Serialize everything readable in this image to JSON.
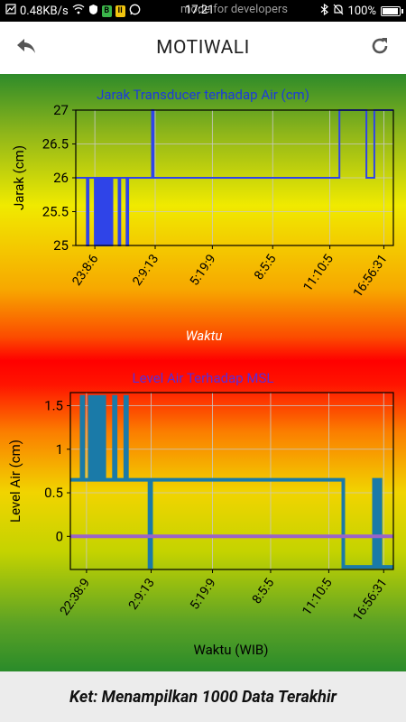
{
  "status_bar": {
    "speed": "0.48KB/s",
    "overlay_text": "mode for developers",
    "time": "17:21",
    "battery": "100%",
    "battery_level": 1.0
  },
  "app_bar": {
    "title": "MOTIWALI",
    "back_icon": "back-arrow-icon",
    "refresh_icon": "refresh-icon"
  },
  "chart_data": [
    {
      "type": "line",
      "title": "Jarak Transducer terhadap Air (cm)",
      "xlabel": "Waktu",
      "ylabel": "Jarak (cm)",
      "ylim": [
        25,
        27
      ],
      "yticks": [
        "25",
        "25.5",
        "26",
        "26.5",
        "27"
      ],
      "xticks": [
        "23:8:6",
        "2:9:13",
        "5:19:9",
        "8:5:5",
        "11:10:5",
        "16:56:31"
      ],
      "grid": true,
      "color": "#2f44e8",
      "title_color": "#1c3bdc",
      "series": [
        {
          "points": [
            [
              0,
              26
            ],
            [
              0.035,
              26
            ],
            [
              0.035,
              25
            ],
            [
              0.04,
              25
            ],
            [
              0.04,
              26
            ],
            [
              0.06,
              26
            ],
            [
              0.06,
              25
            ],
            [
              0.065,
              25
            ],
            [
              0.065,
              26
            ],
            [
              0.07,
              26
            ],
            [
              0.07,
              25
            ],
            [
              0.075,
              25
            ],
            [
              0.075,
              26
            ],
            [
              0.08,
              26
            ],
            [
              0.08,
              25
            ],
            [
              0.085,
              25
            ],
            [
              0.085,
              26
            ],
            [
              0.09,
              26
            ],
            [
              0.09,
              25
            ],
            [
              0.095,
              25
            ],
            [
              0.095,
              26
            ],
            [
              0.1,
              26
            ],
            [
              0.1,
              25
            ],
            [
              0.105,
              25
            ],
            [
              0.105,
              26
            ],
            [
              0.11,
              26
            ],
            [
              0.11,
              25
            ],
            [
              0.115,
              25
            ],
            [
              0.115,
              26
            ],
            [
              0.135,
              26
            ],
            [
              0.135,
              25
            ],
            [
              0.14,
              25
            ],
            [
              0.14,
              26
            ],
            [
              0.16,
              26
            ],
            [
              0.16,
              25
            ],
            [
              0.165,
              25
            ],
            [
              0.165,
              26
            ],
            [
              0.24,
              26
            ],
            [
              0.24,
              27
            ],
            [
              0.245,
              27
            ],
            [
              0.245,
              26
            ],
            [
              0.83,
              26
            ],
            [
              0.83,
              27
            ],
            [
              0.915,
              27
            ],
            [
              0.915,
              26
            ],
            [
              0.94,
              26
            ],
            [
              0.94,
              27
            ],
            [
              1,
              27
            ]
          ]
        }
      ]
    },
    {
      "type": "line",
      "title": "Level Air Terhadap MSL",
      "xlabel": "Waktu (WIB)",
      "ylabel": "Level Air (cm)",
      "ylim": [
        -0.38,
        1.65
      ],
      "yticks": [
        "0",
        "0.5",
        "1",
        "1.5"
      ],
      "xticks": [
        "22:38:9",
        "2:9:13",
        "5:19:9",
        "8:5:5",
        "11:10:5",
        "16:56:31"
      ],
      "grid": true,
      "title_color": "#5a2bd8",
      "series": [
        {
          "name": "",
          "color": "#1a7aa8",
          "points": [
            [
              0,
              0.65
            ],
            [
              0.035,
              0.65
            ],
            [
              0.035,
              1.6
            ],
            [
              0.04,
              1.6
            ],
            [
              0.04,
              0.65
            ],
            [
              0.06,
              0.65
            ],
            [
              0.06,
              1.6
            ],
            [
              0.065,
              1.6
            ],
            [
              0.065,
              0.65
            ],
            [
              0.07,
              0.65
            ],
            [
              0.07,
              1.6
            ],
            [
              0.075,
              1.6
            ],
            [
              0.075,
              0.65
            ],
            [
              0.08,
              0.65
            ],
            [
              0.08,
              1.6
            ],
            [
              0.085,
              1.6
            ],
            [
              0.085,
              0.65
            ],
            [
              0.09,
              0.65
            ],
            [
              0.09,
              1.6
            ],
            [
              0.095,
              1.6
            ],
            [
              0.095,
              0.65
            ],
            [
              0.1,
              0.65
            ],
            [
              0.1,
              1.6
            ],
            [
              0.105,
              1.6
            ],
            [
              0.105,
              0.65
            ],
            [
              0.135,
              0.65
            ],
            [
              0.135,
              1.6
            ],
            [
              0.14,
              1.6
            ],
            [
              0.14,
              0.65
            ],
            [
              0.17,
              0.65
            ],
            [
              0.17,
              1.6
            ],
            [
              0.175,
              1.6
            ],
            [
              0.175,
              0.65
            ],
            [
              0.245,
              0.65
            ],
            [
              0.245,
              -0.35
            ],
            [
              0.25,
              -0.35
            ],
            [
              0.25,
              0.65
            ],
            [
              0.845,
              0.65
            ],
            [
              0.845,
              -0.35
            ],
            [
              0.94,
              -0.35
            ],
            [
              0.94,
              0.65
            ],
            [
              0.95,
              0.65
            ],
            [
              0.95,
              -0.35
            ],
            [
              0.955,
              -0.35
            ],
            [
              0.955,
              0.65
            ],
            [
              0.96,
              0.65
            ],
            [
              0.96,
              -0.35
            ],
            [
              1,
              -0.35
            ]
          ]
        },
        {
          "name": "",
          "color": "#9b63c7",
          "points": [
            [
              0,
              0
            ],
            [
              1,
              0
            ]
          ]
        }
      ]
    }
  ],
  "footer": {
    "text": "Ket: Menampilkan 1000 Data Terakhir"
  }
}
